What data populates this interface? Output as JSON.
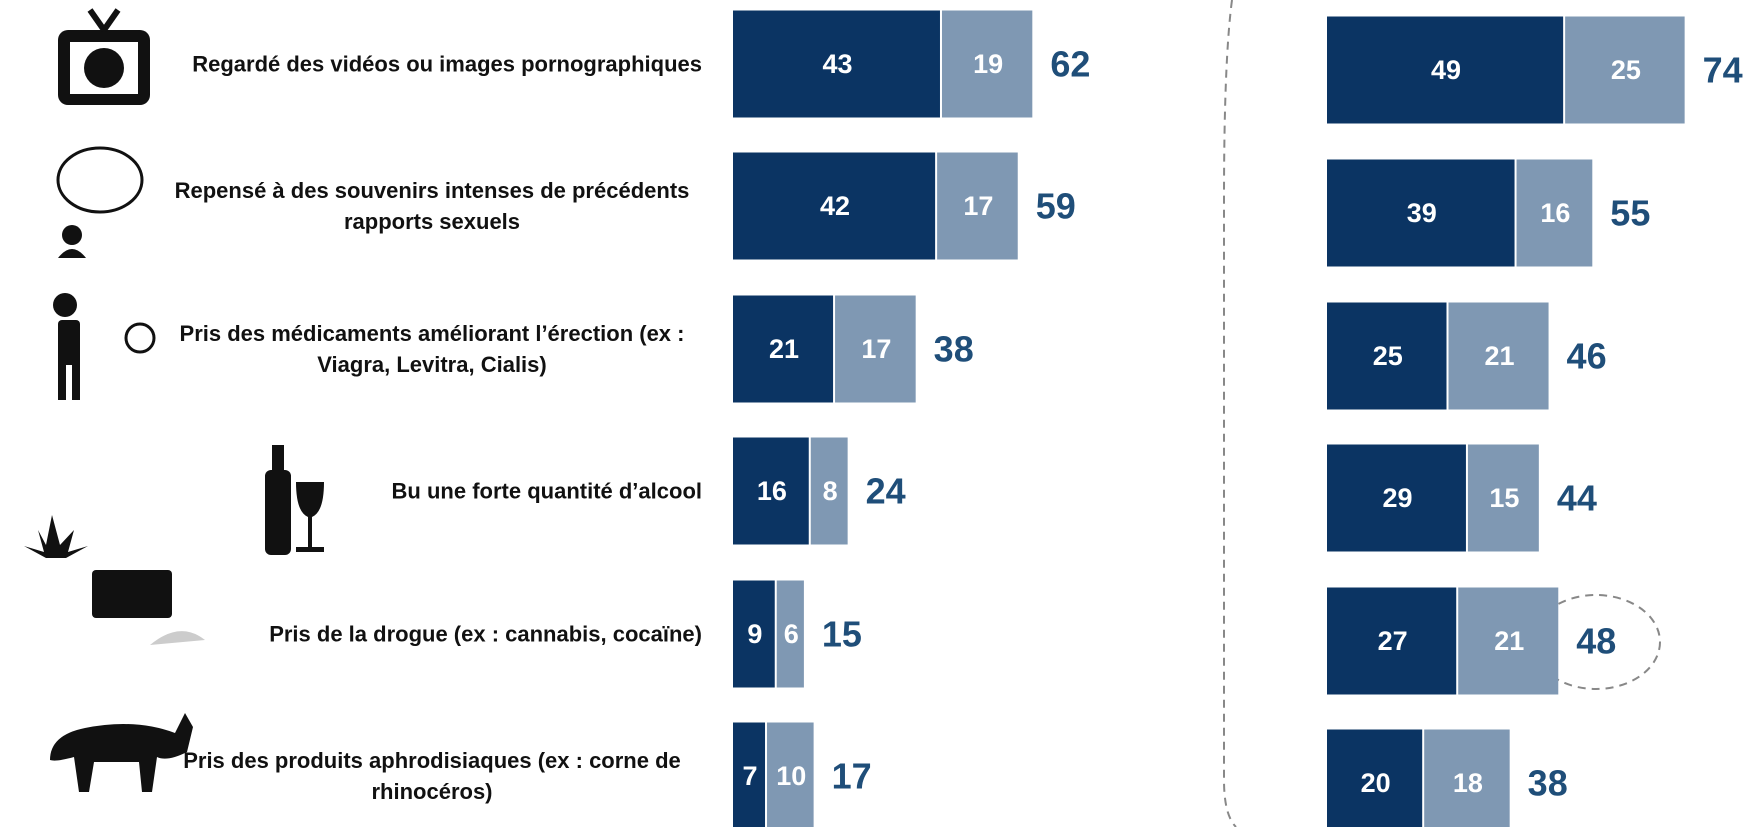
{
  "chart_data": [
    {
      "type": "bar",
      "stacked": true,
      "orientation": "horizontal",
      "categories": [
        "Regardé des vidéos ou images pornographiques",
        "Repensé à des souvenirs intenses de précédents rapports sexuels",
        "Pris des médicaments améliorant l’érection (ex : Viagra, Levitra, Cialis)",
        "Bu une forte quantité d’alcool",
        "Pris de la drogue (ex : cannabis, cocaïne)",
        "Pris des produits aphrodisiaques (ex : corne de rhinocéros)"
      ],
      "series": [
        {
          "color": "#0b3463",
          "values": [
            43,
            42,
            21,
            16,
            9,
            7
          ]
        },
        {
          "color": "#7f98b3",
          "values": [
            19,
            17,
            17,
            8,
            6,
            10
          ]
        }
      ],
      "totals": [
        62,
        59,
        38,
        24,
        15,
        17
      ],
      "totals_color": "#1f4e79"
    },
    {
      "type": "bar",
      "stacked": true,
      "orientation": "horizontal",
      "series": [
        {
          "color": "#0b3463",
          "values": [
            49,
            39,
            25,
            29,
            27,
            20
          ]
        },
        {
          "color": "#7f98b3",
          "values": [
            25,
            16,
            21,
            15,
            21,
            18
          ]
        }
      ],
      "totals": [
        74,
        55,
        46,
        44,
        48,
        38
      ],
      "totals_color": "#1f4e79"
    }
  ]
}
